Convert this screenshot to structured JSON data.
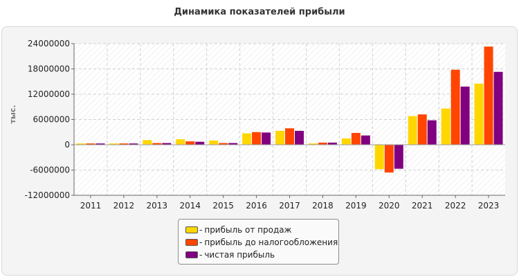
{
  "chart_data": {
    "type": "bar",
    "title": "Динамика показателей прибыли",
    "ylabel": "тыс.",
    "xlabel": "",
    "categories": [
      "2011",
      "2012",
      "2013",
      "2014",
      "2015",
      "2016",
      "2017",
      "2018",
      "2019",
      "2020",
      "2021",
      "2022",
      "2023"
    ],
    "ylim": [
      -12000000,
      24000000
    ],
    "yticks": [
      24000000,
      18000000,
      12000000,
      6000000,
      0,
      -6000000,
      -12000000
    ],
    "grid": true,
    "legend_position": "bottom",
    "series": [
      {
        "name": "прибыль от продаж",
        "color": "#ffd700",
        "values": [
          300000,
          300000,
          1100000,
          1300000,
          1000000,
          2700000,
          3300000,
          300000,
          1500000,
          -5800000,
          6800000,
          8600000,
          14500000
        ]
      },
      {
        "name": "прибыль до налогообложения",
        "color": "#ff4500",
        "values": [
          300000,
          300000,
          400000,
          800000,
          400000,
          3000000,
          3900000,
          500000,
          2800000,
          -6600000,
          7200000,
          17800000,
          23300000
        ]
      },
      {
        "name": "чистая прибыль",
        "color": "#800080",
        "values": [
          300000,
          300000,
          400000,
          700000,
          400000,
          2900000,
          3300000,
          500000,
          2200000,
          -5700000,
          5800000,
          13800000,
          17300000
        ]
      }
    ]
  },
  "legend": {
    "dash": "-"
  }
}
